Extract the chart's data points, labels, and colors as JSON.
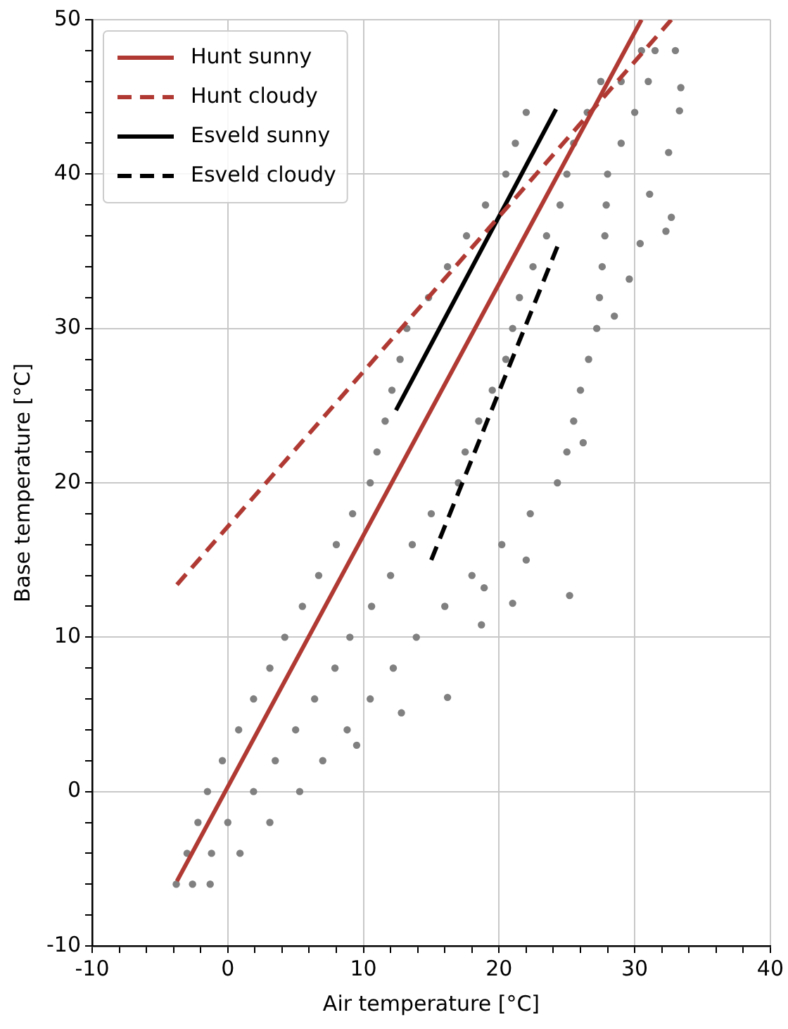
{
  "chart_data": {
    "type": "scatter",
    "xlabel": "Air temperature [°C]",
    "ylabel": "Base temperature [°C]",
    "xlim": [
      -10,
      40
    ],
    "ylim": [
      -10,
      50
    ],
    "xticks": [
      -10,
      {
        "value": -8,
        "label": null
      },
      {
        "value": -6,
        "label": null
      },
      {
        "value": -4,
        "label": null
      },
      {
        "value": -2,
        "label": null
      },
      0,
      {
        "value": 2,
        "label": null
      },
      {
        "value": 4,
        "label": null
      },
      {
        "value": 6,
        "label": null
      },
      {
        "value": 8,
        "label": null
      },
      10,
      {
        "value": 12,
        "label": null
      },
      {
        "value": 14,
        "label": null
      },
      {
        "value": 16,
        "label": null
      },
      {
        "value": 18,
        "label": null
      },
      20,
      {
        "value": 22,
        "label": null
      },
      {
        "value": 24,
        "label": null
      },
      {
        "value": 26,
        "label": null
      },
      {
        "value": 28,
        "label": null
      },
      30,
      {
        "value": 32,
        "label": null
      },
      {
        "value": 34,
        "label": null
      },
      {
        "value": 36,
        "label": null
      },
      {
        "value": 38,
        "label": null
      },
      40
    ],
    "yticks": [
      -10,
      {
        "value": -8,
        "label": null
      },
      {
        "value": -6,
        "label": null
      },
      {
        "value": -4,
        "label": null
      },
      {
        "value": -2,
        "label": null
      },
      0,
      {
        "value": 2,
        "label": null
      },
      {
        "value": 4,
        "label": null
      },
      {
        "value": 6,
        "label": null
      },
      {
        "value": 8,
        "label": null
      },
      10,
      {
        "value": 12,
        "label": null
      },
      {
        "value": 14,
        "label": null
      },
      {
        "value": 16,
        "label": null
      },
      {
        "value": 18,
        "label": null
      },
      20,
      {
        "value": 22,
        "label": null
      },
      {
        "value": 24,
        "label": null
      },
      {
        "value": 26,
        "label": null
      },
      {
        "value": 28,
        "label": null
      },
      30,
      {
        "value": 32,
        "label": null
      },
      {
        "value": 34,
        "label": null
      },
      {
        "value": 36,
        "label": null
      },
      {
        "value": 38,
        "label": null
      },
      40,
      {
        "value": 42,
        "label": null
      },
      {
        "value": 44,
        "label": null
      },
      {
        "value": 46,
        "label": null
      },
      {
        "value": 48,
        "label": null
      },
      50
    ],
    "grid": true,
    "legend": "top left",
    "series": [
      {
        "color": "#808080",
        "marker": "circle",
        "x": [
          -3.8,
          -2.6,
          -1.3,
          -3.0,
          -1.2,
          0.9,
          -2.2,
          0.0,
          3.1,
          -1.5,
          1.9,
          5.3,
          -0.4,
          3.5,
          7.0,
          0.8,
          5.0,
          8.8,
          1.9,
          6.4,
          10.5,
          3.1,
          7.9,
          12.2,
          4.2,
          9.0,
          13.9,
          5.5,
          10.6,
          16.0,
          6.7,
          12.0,
          18.0,
          8.0,
          13.6,
          20.2,
          9.2,
          15.0,
          22.3,
          10.5,
          17.0,
          24.3,
          11.0,
          17.5,
          25.0,
          11.6,
          18.5,
          25.5,
          12.1,
          19.5,
          26.0,
          12.7,
          20.5,
          26.6,
          13.2,
          21.0,
          27.2,
          14.8,
          21.5,
          27.4,
          16.2,
          22.5,
          27.6,
          17.6,
          23.5,
          27.8,
          19.0,
          24.5,
          27.9,
          20.5,
          25.0,
          28.0,
          21.2,
          25.5,
          29.0,
          22.0,
          26.5,
          30.0,
          27.5,
          29.0,
          31.0,
          30.5,
          31.5,
          33.0,
          22.0,
          25.2,
          21.0,
          18.7,
          16.2,
          12.8,
          9.5,
          18.9,
          33.4,
          33.3,
          32.5,
          32.7,
          32.3,
          31.1,
          30.4,
          29.6,
          28.5,
          26.2
        ],
        "values": [
          -6,
          -6,
          -6,
          -4,
          -4,
          -4,
          -2,
          -2,
          -2,
          0,
          0,
          0,
          2,
          2,
          2,
          4,
          4,
          4,
          6,
          6,
          6,
          8,
          8,
          8,
          10,
          10,
          10,
          12,
          12,
          12,
          14,
          14,
          14,
          16,
          16,
          16,
          18,
          18,
          18,
          20,
          20,
          20,
          22,
          22,
          22,
          24,
          24,
          24,
          26,
          26,
          26,
          28,
          28,
          28,
          30,
          30,
          30,
          32,
          32,
          32,
          34,
          34,
          34,
          36,
          36,
          36,
          38,
          38,
          38,
          40,
          40,
          40,
          42,
          42,
          42,
          44,
          44,
          44,
          46,
          46,
          46,
          48,
          48,
          48,
          15.0,
          12.7,
          12.2,
          10.8,
          6.1,
          5.1,
          3.0,
          13.2,
          45.6,
          44.1,
          41.4,
          37.2,
          36.3,
          38.7,
          35.5,
          33.2,
          30.8,
          22.6
        ]
      },
      {
        "type": "line",
        "name": "Hunt sunny",
        "color": "#b03a33",
        "line_style": "solid",
        "marker": "none",
        "x": [
          -3.75,
          30.5
        ],
        "values": [
          -5.8,
          50
        ]
      },
      {
        "type": "line",
        "name": "Hunt cloudy",
        "color": "#b03a33",
        "line_style": "dashed",
        "marker": "none",
        "x": [
          -3.75,
          32.7
        ],
        "values": [
          13.4,
          50
        ]
      },
      {
        "type": "line",
        "name": "Esveld sunny",
        "color": "#000000",
        "line_style": "solid",
        "marker": "none",
        "x": [
          12.4,
          24.2
        ],
        "values": [
          24.7,
          44.2
        ]
      },
      {
        "type": "line",
        "name": "Esveld cloudy",
        "color": "#000000",
        "line_style": "dashed",
        "marker": "none",
        "x": [
          15.0,
          24.3
        ],
        "values": [
          15.0,
          35.3
        ]
      }
    ]
  }
}
